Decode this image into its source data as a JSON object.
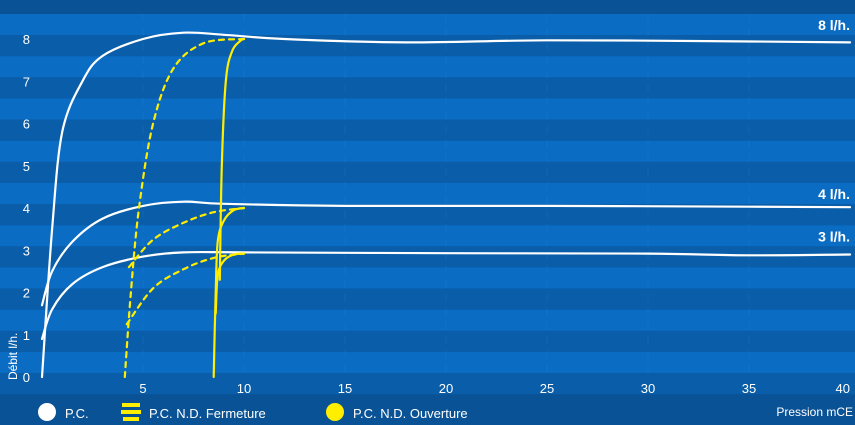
{
  "chart_data": {
    "type": "line",
    "xlabel": "Pression mCE",
    "ylabel": "Débit l/h.",
    "xlim": [
      0,
      40
    ],
    "ylim": [
      0,
      8.5
    ],
    "x_ticks": [
      5,
      10,
      15,
      20,
      25,
      30,
      35,
      40
    ],
    "y_ticks": [
      0,
      1,
      2,
      3,
      4,
      5,
      6,
      7,
      8
    ],
    "grid": "horizontal bands",
    "legend_placement": "bottom-left",
    "curve_labels": [
      {
        "text": "8 l/h.",
        "y": 8
      },
      {
        "text": "4 l/h.",
        "y": 4
      },
      {
        "text": "3 l/h.",
        "y": 3
      }
    ],
    "legend": [
      {
        "name": "P.C.",
        "color": "#ffffff",
        "style": "solid"
      },
      {
        "name": "P.C. N.D. Fermeture",
        "color": "#ffee00",
        "style": "dashed"
      },
      {
        "name": "P.C. N.D. Ouverture",
        "color": "#ffee00",
        "style": "solid"
      }
    ],
    "series": [
      {
        "group": "P.C.",
        "color": "#ffffff",
        "dash": false,
        "points": [
          [
            0,
            0
          ],
          [
            0.5,
            3.5
          ],
          [
            1,
            5.8
          ],
          [
            2,
            7.0
          ],
          [
            3,
            7.6
          ],
          [
            5,
            8.0
          ],
          [
            7,
            8.15
          ],
          [
            9,
            8.1
          ],
          [
            12,
            8.0
          ],
          [
            18,
            7.92
          ],
          [
            25,
            7.97
          ],
          [
            33,
            7.95
          ],
          [
            40,
            7.92
          ]
        ]
      },
      {
        "group": "P.C.",
        "color": "#ffffff",
        "dash": false,
        "points": [
          [
            0,
            1.7
          ],
          [
            0.5,
            2.5
          ],
          [
            1.5,
            3.2
          ],
          [
            3,
            3.75
          ],
          [
            5,
            4.05
          ],
          [
            7,
            4.15
          ],
          [
            9,
            4.1
          ],
          [
            15,
            4.05
          ],
          [
            25,
            4.05
          ],
          [
            35,
            4.03
          ],
          [
            40,
            4.02
          ]
        ]
      },
      {
        "group": "P.C.",
        "color": "#ffffff",
        "dash": false,
        "points": [
          [
            0,
            0.9
          ],
          [
            0.5,
            1.6
          ],
          [
            1.5,
            2.2
          ],
          [
            3,
            2.6
          ],
          [
            5,
            2.85
          ],
          [
            7,
            2.95
          ],
          [
            10,
            2.95
          ],
          [
            20,
            2.93
          ],
          [
            30,
            2.92
          ],
          [
            35,
            2.88
          ],
          [
            40,
            2.9
          ]
        ]
      },
      {
        "group": "P.C. N.D. Fermeture",
        "color": "#ffee00",
        "dash": true,
        "points": [
          [
            4.1,
            0
          ],
          [
            4.4,
            2
          ],
          [
            4.8,
            4
          ],
          [
            5.5,
            6
          ],
          [
            6.5,
            7.3
          ],
          [
            8,
            7.9
          ],
          [
            10,
            8.0
          ]
        ]
      },
      {
        "group": "P.C. N.D. Fermeture",
        "color": "#ffee00",
        "dash": true,
        "points": [
          [
            4.3,
            2.6
          ],
          [
            5.5,
            3.25
          ],
          [
            7,
            3.65
          ],
          [
            8.5,
            3.9
          ],
          [
            10,
            4.0
          ]
        ]
      },
      {
        "group": "P.C. N.D. Fermeture",
        "color": "#ffee00",
        "dash": true,
        "points": [
          [
            4.2,
            1.25
          ],
          [
            5.5,
            2.1
          ],
          [
            7,
            2.55
          ],
          [
            8.5,
            2.82
          ],
          [
            10,
            2.92
          ]
        ]
      },
      {
        "group": "P.C. N.D. Ouverture",
        "color": "#ffee00",
        "dash": false,
        "points": [
          [
            8.8,
            2.3
          ],
          [
            8.9,
            5
          ],
          [
            9.1,
            7
          ],
          [
            9.4,
            7.7
          ],
          [
            9.8,
            7.95
          ],
          [
            10,
            8.0
          ]
        ]
      },
      {
        "group": "P.C. N.D. Ouverture",
        "color": "#ffee00",
        "dash": false,
        "points": [
          [
            8.5,
            0
          ],
          [
            8.6,
            2
          ],
          [
            8.7,
            3.2
          ],
          [
            9.0,
            3.7
          ],
          [
            9.5,
            3.95
          ],
          [
            10,
            4.0
          ]
        ]
      },
      {
        "group": "P.C. N.D. Ouverture",
        "color": "#ffee00",
        "dash": false,
        "points": [
          [
            8.6,
            1.5
          ],
          [
            8.7,
            2.4
          ],
          [
            9.0,
            2.75
          ],
          [
            9.5,
            2.9
          ],
          [
            10,
            2.92
          ]
        ]
      }
    ]
  }
}
